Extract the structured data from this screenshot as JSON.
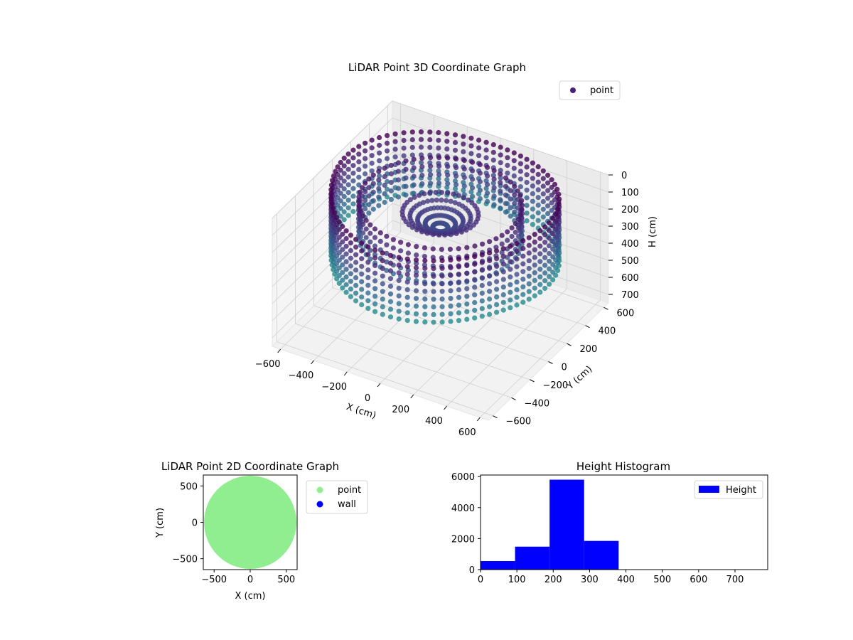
{
  "chart_data": [
    {
      "type": "scatter",
      "projection": "3d",
      "title": "LiDAR Point 3D Coordinate Graph",
      "xlabel": "X (cm)",
      "ylabel": "Y (cm)",
      "zlabel": "H (cm)",
      "xlim": [
        -650,
        650
      ],
      "ylim": [
        -650,
        650
      ],
      "zlim": [
        0,
        750
      ],
      "z_inverted": true,
      "xticks": [
        -600,
        -400,
        -200,
        0,
        200,
        400,
        600
      ],
      "yticks": [
        -600,
        -400,
        -200,
        0,
        200,
        400,
        600
      ],
      "zticks": [
        0,
        100,
        200,
        300,
        400,
        500,
        600,
        700
      ],
      "legend": {
        "position": "top-right",
        "entries": [
          {
            "name": "point",
            "color": "#482173"
          }
        ]
      },
      "colormap": "viridis",
      "series": [
        {
          "name": "point",
          "shape": "cylindrical ring of points around the sensor",
          "radius_range": [
            420,
            640
          ],
          "h_range": [
            0,
            380
          ]
        }
      ],
      "grid": true
    },
    {
      "type": "scatter",
      "title": "LiDAR Point 2D Coordinate Graph",
      "xlabel": "X (cm)",
      "ylabel": "Y (cm)",
      "xlim": [
        -650,
        650
      ],
      "ylim": [
        -650,
        650
      ],
      "xticks": [
        -500,
        0,
        500
      ],
      "yticks": [
        -500,
        0,
        500
      ],
      "legend": {
        "position": "outside-right",
        "entries": [
          {
            "name": "point",
            "color": "#90ee90"
          },
          {
            "name": "wall",
            "color": "#0000ff"
          }
        ]
      },
      "series": [
        {
          "name": "point",
          "color": "#90ee90",
          "shape": "filled disc",
          "radius": 640
        },
        {
          "name": "wall",
          "color": "#0000ff",
          "values": []
        }
      ]
    },
    {
      "type": "bar",
      "subtype": "histogram",
      "title": "Height Histogram",
      "xlim": [
        0,
        790
      ],
      "ylim": [
        0,
        6100
      ],
      "xticks": [
        0,
        100,
        200,
        300,
        400,
        500,
        600,
        700
      ],
      "yticks": [
        0,
        2000,
        4000,
        6000
      ],
      "legend": {
        "position": "top-right",
        "entries": [
          {
            "name": "Height",
            "color": "#0000ff"
          }
        ]
      },
      "series": [
        {
          "name": "Height",
          "color": "#0000ff",
          "bins": [
            {
              "start": 0,
              "end": 95,
              "count": 550
            },
            {
              "start": 95,
              "end": 190,
              "count": 1480
            },
            {
              "start": 190,
              "end": 285,
              "count": 5800
            },
            {
              "start": 285,
              "end": 380,
              "count": 1850
            },
            {
              "start": 380,
              "end": 475,
              "count": 0
            },
            {
              "start": 475,
              "end": 570,
              "count": 0
            },
            {
              "start": 570,
              "end": 665,
              "count": 0
            },
            {
              "start": 665,
              "end": 760,
              "count": 0
            }
          ]
        }
      ]
    }
  ]
}
